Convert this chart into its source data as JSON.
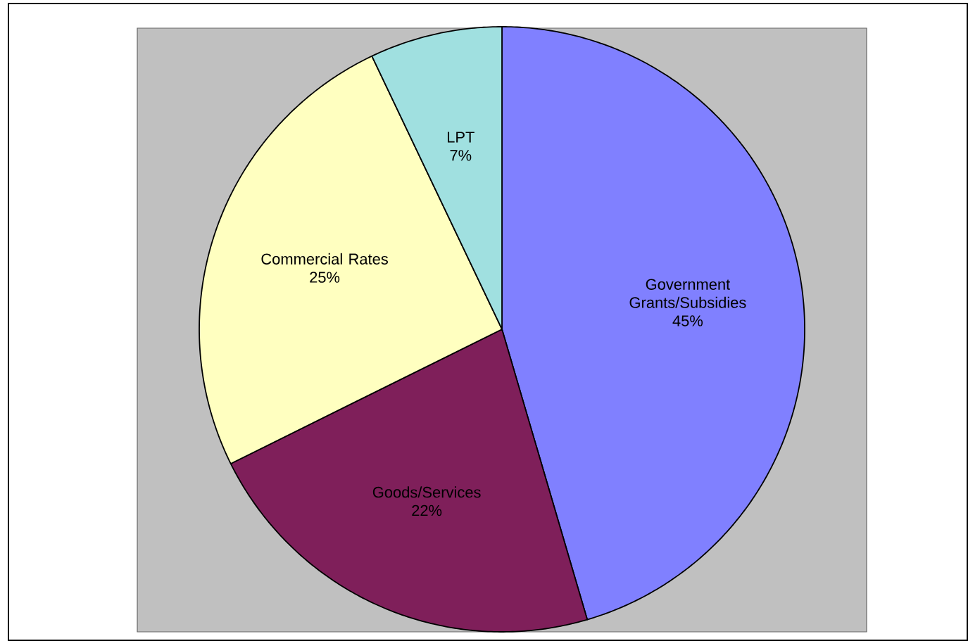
{
  "chart_data": {
    "type": "pie",
    "categories": [
      "Government Grants/Subsidies",
      "Goods/Services",
      "Commercial Rates",
      "LPT"
    ],
    "values": [
      45,
      22,
      25,
      7
    ],
    "value_labels": [
      "45%",
      "22%",
      "25%",
      "7%"
    ],
    "colors": [
      "#8080ff",
      "#7f1f5a",
      "#ffffc0",
      "#a0e0e0"
    ]
  }
}
